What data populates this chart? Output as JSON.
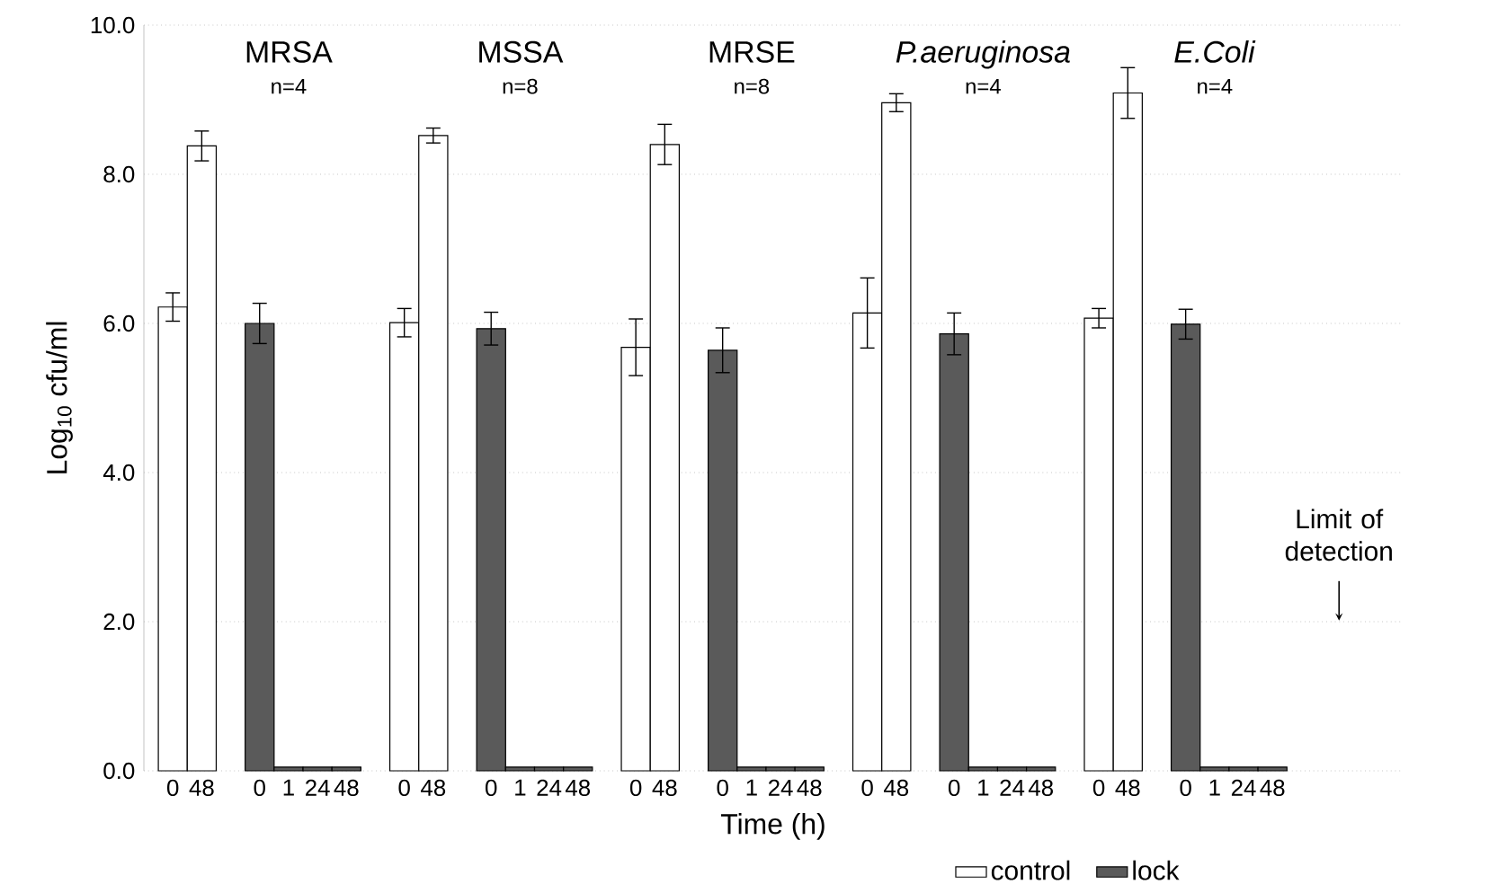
{
  "chart_data": {
    "type": "bar",
    "categories": [
      "0",
      "48",
      null,
      "0",
      "1",
      "24",
      "48",
      null,
      "0",
      "48",
      null,
      "0",
      "1",
      "24",
      "48",
      null,
      "0",
      "48",
      null,
      "0",
      "1",
      "24",
      "48",
      null,
      "0",
      "48",
      null,
      "0",
      "1",
      "24",
      "48",
      null,
      "0",
      "48",
      null,
      "0",
      "1",
      "24",
      "48"
    ],
    "series": [
      {
        "name": "control",
        "color": "#ffffff",
        "values": [
          6.22,
          8.38,
          null,
          null,
          null,
          null,
          null,
          null,
          6.01,
          8.52,
          null,
          null,
          null,
          null,
          null,
          null,
          5.68,
          8.4,
          null,
          null,
          null,
          null,
          null,
          null,
          6.14,
          8.96,
          null,
          null,
          null,
          null,
          null,
          null,
          6.07,
          9.09,
          null,
          null,
          null,
          null,
          null
        ],
        "errors": [
          0.19,
          0.2,
          null,
          null,
          null,
          null,
          null,
          null,
          0.19,
          0.1,
          null,
          null,
          null,
          null,
          null,
          null,
          0.38,
          0.27,
          null,
          null,
          null,
          null,
          null,
          null,
          0.47,
          0.12,
          null,
          null,
          null,
          null,
          null,
          null,
          0.13,
          0.34,
          null,
          null,
          null,
          null,
          null
        ]
      },
      {
        "name": "lock",
        "color": "#5a5a5a",
        "values": [
          null,
          null,
          null,
          6.0,
          0.05,
          0.05,
          0.05,
          null,
          null,
          null,
          null,
          5.93,
          0.05,
          0.05,
          0.05,
          null,
          null,
          null,
          null,
          5.64,
          0.05,
          0.05,
          0.05,
          null,
          null,
          null,
          null,
          5.86,
          0.05,
          0.05,
          0.05,
          null,
          null,
          null,
          null,
          5.99,
          0.05,
          0.05,
          0.05
        ],
        "errors": [
          null,
          null,
          null,
          0.27,
          null,
          null,
          null,
          null,
          null,
          null,
          null,
          0.22,
          null,
          null,
          null,
          null,
          null,
          null,
          null,
          0.3,
          null,
          null,
          null,
          null,
          null,
          null,
          null,
          0.28,
          null,
          null,
          null,
          null,
          null,
          null,
          null,
          0.2,
          null,
          null,
          null
        ]
      }
    ],
    "xlabel": "Time (h)",
    "ylabel": "Log$_{10}$ cfu/ml",
    "ylim": [
      0,
      10
    ],
    "yticks": [
      {
        "value": 0,
        "label": "0.0"
      },
      {
        "value": 2,
        "label": "2.0"
      },
      {
        "value": 4,
        "label": "4.0"
      },
      {
        "value": 6,
        "label": "6.0"
      },
      {
        "value": 8,
        "label": "8.0"
      },
      {
        "value": 10,
        "label": "10.0"
      }
    ],
    "grid": "y",
    "legend": "bottom right",
    "annotations": [
      "MRSA",
      "n=4",
      "MSSA",
      "n=8",
      "MRSE",
      "n=8",
      "*P.aeruginosa*",
      "n=4",
      "*E.Coli*",
      "n=4",
      "Limit of detection"
    ]
  }
}
